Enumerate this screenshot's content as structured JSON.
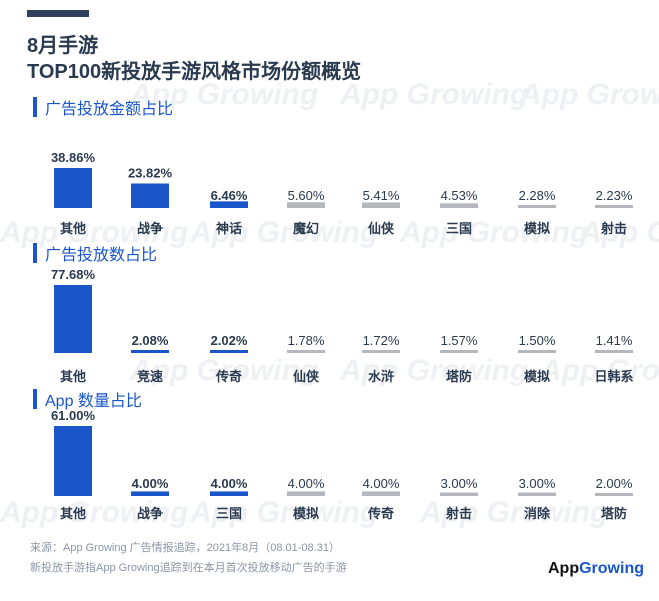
{
  "header": {
    "title_line1": "8月手游",
    "title_line2": "TOP100新投放手游风格市场份额概览"
  },
  "colors": {
    "highlight": "#1a56c9",
    "neutral": "#b4b8bd",
    "text_dark": "#2a3a4f",
    "muted": "#8a95a5"
  },
  "watermark": "App Growing",
  "sections": [
    {
      "title": "广告投放金额占比"
    },
    {
      "title": "广告投放数占比"
    },
    {
      "title": "App 数量占比"
    }
  ],
  "chart_data": [
    {
      "type": "bar",
      "title": "广告投放金额占比",
      "categories": [
        "其他",
        "战争",
        "神话",
        "魔幻",
        "仙侠",
        "三国",
        "模拟",
        "射击"
      ],
      "values": [
        38.86,
        23.82,
        6.46,
        5.6,
        5.41,
        4.53,
        2.28,
        2.23
      ],
      "labels": [
        "38.86%",
        "23.82%",
        "6.46%",
        "5.60%",
        "5.41%",
        "4.53%",
        "2.28%",
        "2.23%"
      ],
      "highlighted": [
        true,
        true,
        true,
        false,
        false,
        false,
        false,
        false
      ]
    },
    {
      "type": "bar",
      "title": "广告投放数占比",
      "categories": [
        "其他",
        "竞速",
        "传奇",
        "仙侠",
        "水浒",
        "塔防",
        "模拟",
        "日韩系"
      ],
      "values": [
        77.68,
        2.08,
        2.02,
        1.78,
        1.72,
        1.57,
        1.5,
        1.41
      ],
      "labels": [
        "77.68%",
        "2.08%",
        "2.02%",
        "1.78%",
        "1.72%",
        "1.57%",
        "1.50%",
        "1.41%"
      ],
      "highlighted": [
        true,
        true,
        true,
        false,
        false,
        false,
        false,
        false
      ]
    },
    {
      "type": "bar",
      "title": "App 数量占比",
      "categories": [
        "其他",
        "战争",
        "三国",
        "模拟",
        "传奇",
        "射击",
        "消除",
        "塔防"
      ],
      "values": [
        61.0,
        4.0,
        4.0,
        4.0,
        4.0,
        3.0,
        3.0,
        2.0
      ],
      "labels": [
        "61.00%",
        "4.00%",
        "4.00%",
        "4.00%",
        "4.00%",
        "3.00%",
        "3.00%",
        "2.00%"
      ],
      "highlighted": [
        true,
        true,
        true,
        false,
        false,
        false,
        false,
        false
      ]
    }
  ],
  "footer": {
    "source": "来源：App Growing 广告情报追踪，2021年8月（08.01-08.31）",
    "note": "新投放手游指App Growing追踪到在本月首次投放移动广告的手游"
  },
  "logo": {
    "part1": "App",
    "part2": "Growing"
  }
}
